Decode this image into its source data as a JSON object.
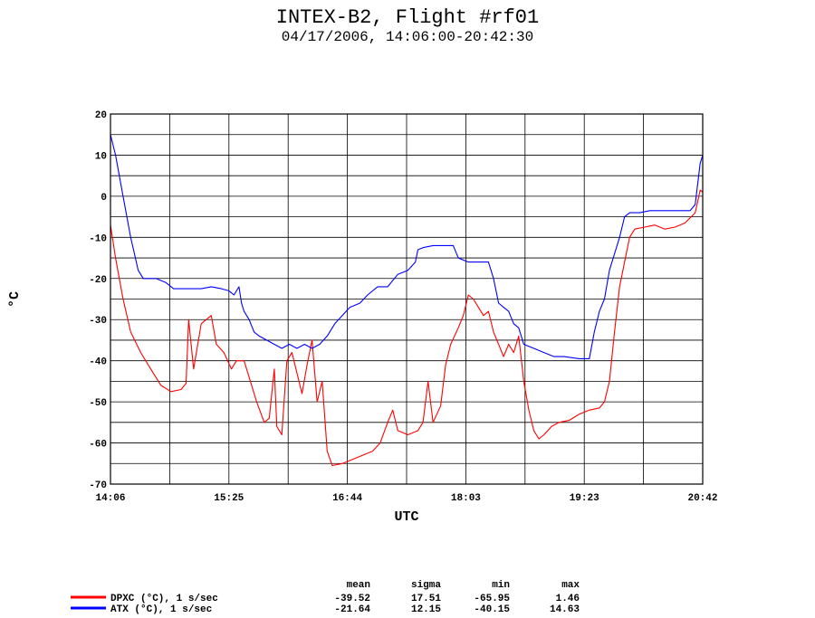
{
  "chart_data": {
    "type": "line",
    "title": "INTEX-B2, Flight #rf01",
    "subtitle": "04/17/2006, 14:06:00-20:42:30",
    "xlabel": "UTC",
    "ylabel": "°C",
    "x_tick_labels": [
      "14:06",
      "15:25",
      "16:44",
      "18:03",
      "19:23",
      "20:42"
    ],
    "ylim": [
      -70,
      20
    ],
    "y_ticks": [
      20,
      10,
      0,
      -10,
      -20,
      -30,
      -40,
      -50,
      -60,
      -70
    ],
    "grid": true,
    "series": [
      {
        "name": "DPXC (°C), 1 s/sec",
        "color": "#ff0000",
        "points": [
          [
            0,
            -7
          ],
          [
            2,
            -15
          ],
          [
            5,
            -25
          ],
          [
            8,
            -33
          ],
          [
            12,
            -38
          ],
          [
            16,
            -42
          ],
          [
            20,
            -46
          ],
          [
            24,
            -47.5
          ],
          [
            28,
            -47
          ],
          [
            30,
            -45.5
          ],
          [
            31,
            -30
          ],
          [
            33,
            -42
          ],
          [
            36,
            -31
          ],
          [
            40,
            -29
          ],
          [
            42,
            -36
          ],
          [
            45,
            -38
          ],
          [
            48,
            -42
          ],
          [
            50,
            -40
          ],
          [
            53,
            -40
          ],
          [
            55,
            -44
          ],
          [
            58,
            -50
          ],
          [
            61,
            -55
          ],
          [
            63,
            -54
          ],
          [
            65,
            -42
          ],
          [
            66,
            -56
          ],
          [
            68,
            -58
          ],
          [
            70,
            -40
          ],
          [
            72,
            -38
          ],
          [
            74,
            -43
          ],
          [
            76,
            -48
          ],
          [
            78,
            -41
          ],
          [
            80,
            -35
          ],
          [
            82,
            -50
          ],
          [
            84,
            -45
          ],
          [
            86,
            -62
          ],
          [
            88,
            -65.5
          ],
          [
            92,
            -65
          ],
          [
            96,
            -64
          ],
          [
            100,
            -63
          ],
          [
            104,
            -62
          ],
          [
            107,
            -60
          ],
          [
            110,
            -55
          ],
          [
            112,
            -52
          ],
          [
            114,
            -57
          ],
          [
            118,
            -58
          ],
          [
            122,
            -57
          ],
          [
            124,
            -55
          ],
          [
            126,
            -45
          ],
          [
            128,
            -55
          ],
          [
            131,
            -51
          ],
          [
            133,
            -41
          ],
          [
            135,
            -36
          ],
          [
            138,
            -32
          ],
          [
            140,
            -29
          ],
          [
            142,
            -24
          ],
          [
            144,
            -25
          ],
          [
            146,
            -27
          ],
          [
            148,
            -29
          ],
          [
            150,
            -28
          ],
          [
            152,
            -33
          ],
          [
            154,
            -36
          ],
          [
            156,
            -39
          ],
          [
            158,
            -36
          ],
          [
            160,
            -38
          ],
          [
            162,
            -34
          ],
          [
            164,
            -45
          ],
          [
            166,
            -52
          ],
          [
            168,
            -57
          ],
          [
            170,
            -59
          ],
          [
            172,
            -58
          ],
          [
            175,
            -56
          ],
          [
            178,
            -55
          ],
          [
            182,
            -54.5
          ],
          [
            186,
            -53
          ],
          [
            190,
            -52
          ],
          [
            194,
            -51.5
          ],
          [
            196,
            -50
          ],
          [
            198,
            -45
          ],
          [
            200,
            -33
          ],
          [
            202,
            -22
          ],
          [
            204,
            -16
          ],
          [
            206,
            -10
          ],
          [
            208,
            -8
          ],
          [
            212,
            -7.5
          ],
          [
            216,
            -7
          ],
          [
            220,
            -8
          ],
          [
            224,
            -7.5
          ],
          [
            228,
            -6.5
          ],
          [
            232,
            -4
          ],
          [
            234,
            1.5
          ],
          [
            235,
            1
          ]
        ]
      },
      {
        "name": "ATX (°C), 1 s/sec",
        "color": "#0000ff",
        "points": [
          [
            0,
            15
          ],
          [
            2,
            10
          ],
          [
            5,
            0
          ],
          [
            8,
            -10
          ],
          [
            11,
            -18
          ],
          [
            13,
            -20
          ],
          [
            18,
            -20
          ],
          [
            22,
            -21
          ],
          [
            25,
            -22.5
          ],
          [
            28,
            -22.5
          ],
          [
            32,
            -22.5
          ],
          [
            36,
            -22.5
          ],
          [
            40,
            -22
          ],
          [
            44,
            -22.5
          ],
          [
            47,
            -23
          ],
          [
            49,
            -24
          ],
          [
            51,
            -22
          ],
          [
            52,
            -26
          ],
          [
            53,
            -28
          ],
          [
            55,
            -30
          ],
          [
            57,
            -33
          ],
          [
            59,
            -34
          ],
          [
            62,
            -35
          ],
          [
            65,
            -36
          ],
          [
            68,
            -37
          ],
          [
            71,
            -36
          ],
          [
            74,
            -37
          ],
          [
            77,
            -36
          ],
          [
            80,
            -37
          ],
          [
            83,
            -36
          ],
          [
            86,
            -34
          ],
          [
            89,
            -31
          ],
          [
            92,
            -29
          ],
          [
            95,
            -27
          ],
          [
            99,
            -26
          ],
          [
            102,
            -24
          ],
          [
            106,
            -22
          ],
          [
            110,
            -22
          ],
          [
            114,
            -19
          ],
          [
            118,
            -18
          ],
          [
            121,
            -16
          ],
          [
            122,
            -13
          ],
          [
            124,
            -12.5
          ],
          [
            128,
            -12
          ],
          [
            132,
            -12
          ],
          [
            136,
            -12
          ],
          [
            138,
            -15
          ],
          [
            142,
            -16
          ],
          [
            146,
            -16
          ],
          [
            150,
            -16
          ],
          [
            152,
            -20
          ],
          [
            154,
            -26
          ],
          [
            156,
            -27
          ],
          [
            158,
            -28
          ],
          [
            160,
            -31
          ],
          [
            162,
            -32
          ],
          [
            164,
            -36
          ],
          [
            168,
            -37
          ],
          [
            172,
            -38
          ],
          [
            176,
            -39
          ],
          [
            180,
            -39
          ],
          [
            186,
            -39.5
          ],
          [
            190,
            -39.5
          ],
          [
            192,
            -33
          ],
          [
            194,
            -28
          ],
          [
            196,
            -25
          ],
          [
            198,
            -18
          ],
          [
            200,
            -14
          ],
          [
            202,
            -10
          ],
          [
            204,
            -5
          ],
          [
            206,
            -4
          ],
          [
            210,
            -4
          ],
          [
            214,
            -3.5
          ],
          [
            218,
            -3.5
          ],
          [
            222,
            -3.5
          ],
          [
            226,
            -3.5
          ],
          [
            230,
            -3.5
          ],
          [
            232,
            -2
          ],
          [
            234,
            8
          ],
          [
            235,
            10
          ]
        ]
      }
    ],
    "stats_header": [
      "mean",
      "sigma",
      "min",
      "max"
    ],
    "stats": [
      {
        "mean": "-39.52",
        "sigma": "17.51",
        "min": "-65.95",
        "max": "1.46"
      },
      {
        "mean": "-21.64",
        "sigma": "12.15",
        "min": "-40.15",
        "max": "14.63"
      }
    ]
  }
}
